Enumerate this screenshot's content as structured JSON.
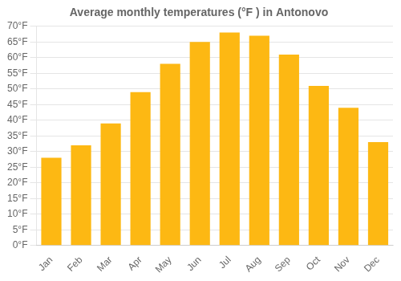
{
  "chart_data": {
    "type": "bar",
    "title": "Average monthly temperatures (°F ) in Antonovo",
    "categories": [
      "Jan",
      "Feb",
      "Mar",
      "Apr",
      "May",
      "Jun",
      "Jul",
      "Aug",
      "Sep",
      "Oct",
      "Nov",
      "Dec"
    ],
    "values": [
      28,
      32,
      39,
      49,
      58,
      65,
      68,
      67,
      61,
      51,
      44,
      33
    ],
    "color": "#FDB813",
    "ylim": [
      0,
      70
    ],
    "yticks": [
      {
        "value": 0,
        "label": "0°F"
      },
      {
        "value": 5,
        "label": "5°F"
      },
      {
        "value": 10,
        "label": "10°F"
      },
      {
        "value": 15,
        "label": "15°F"
      },
      {
        "value": 20,
        "label": "20°F"
      },
      {
        "value": 25,
        "label": "25°F"
      },
      {
        "value": 30,
        "label": "30°F"
      },
      {
        "value": 35,
        "label": "35°F"
      },
      {
        "value": 40,
        "label": "40°F"
      },
      {
        "value": 45,
        "label": "45°F"
      },
      {
        "value": 50,
        "label": "50°F"
      },
      {
        "value": 55,
        "label": "55°F"
      },
      {
        "value": 60,
        "label": "60°F"
      },
      {
        "value": 65,
        "label": "65°F"
      },
      {
        "value": 70,
        "label": "70°F"
      }
    ],
    "grid": true
  }
}
